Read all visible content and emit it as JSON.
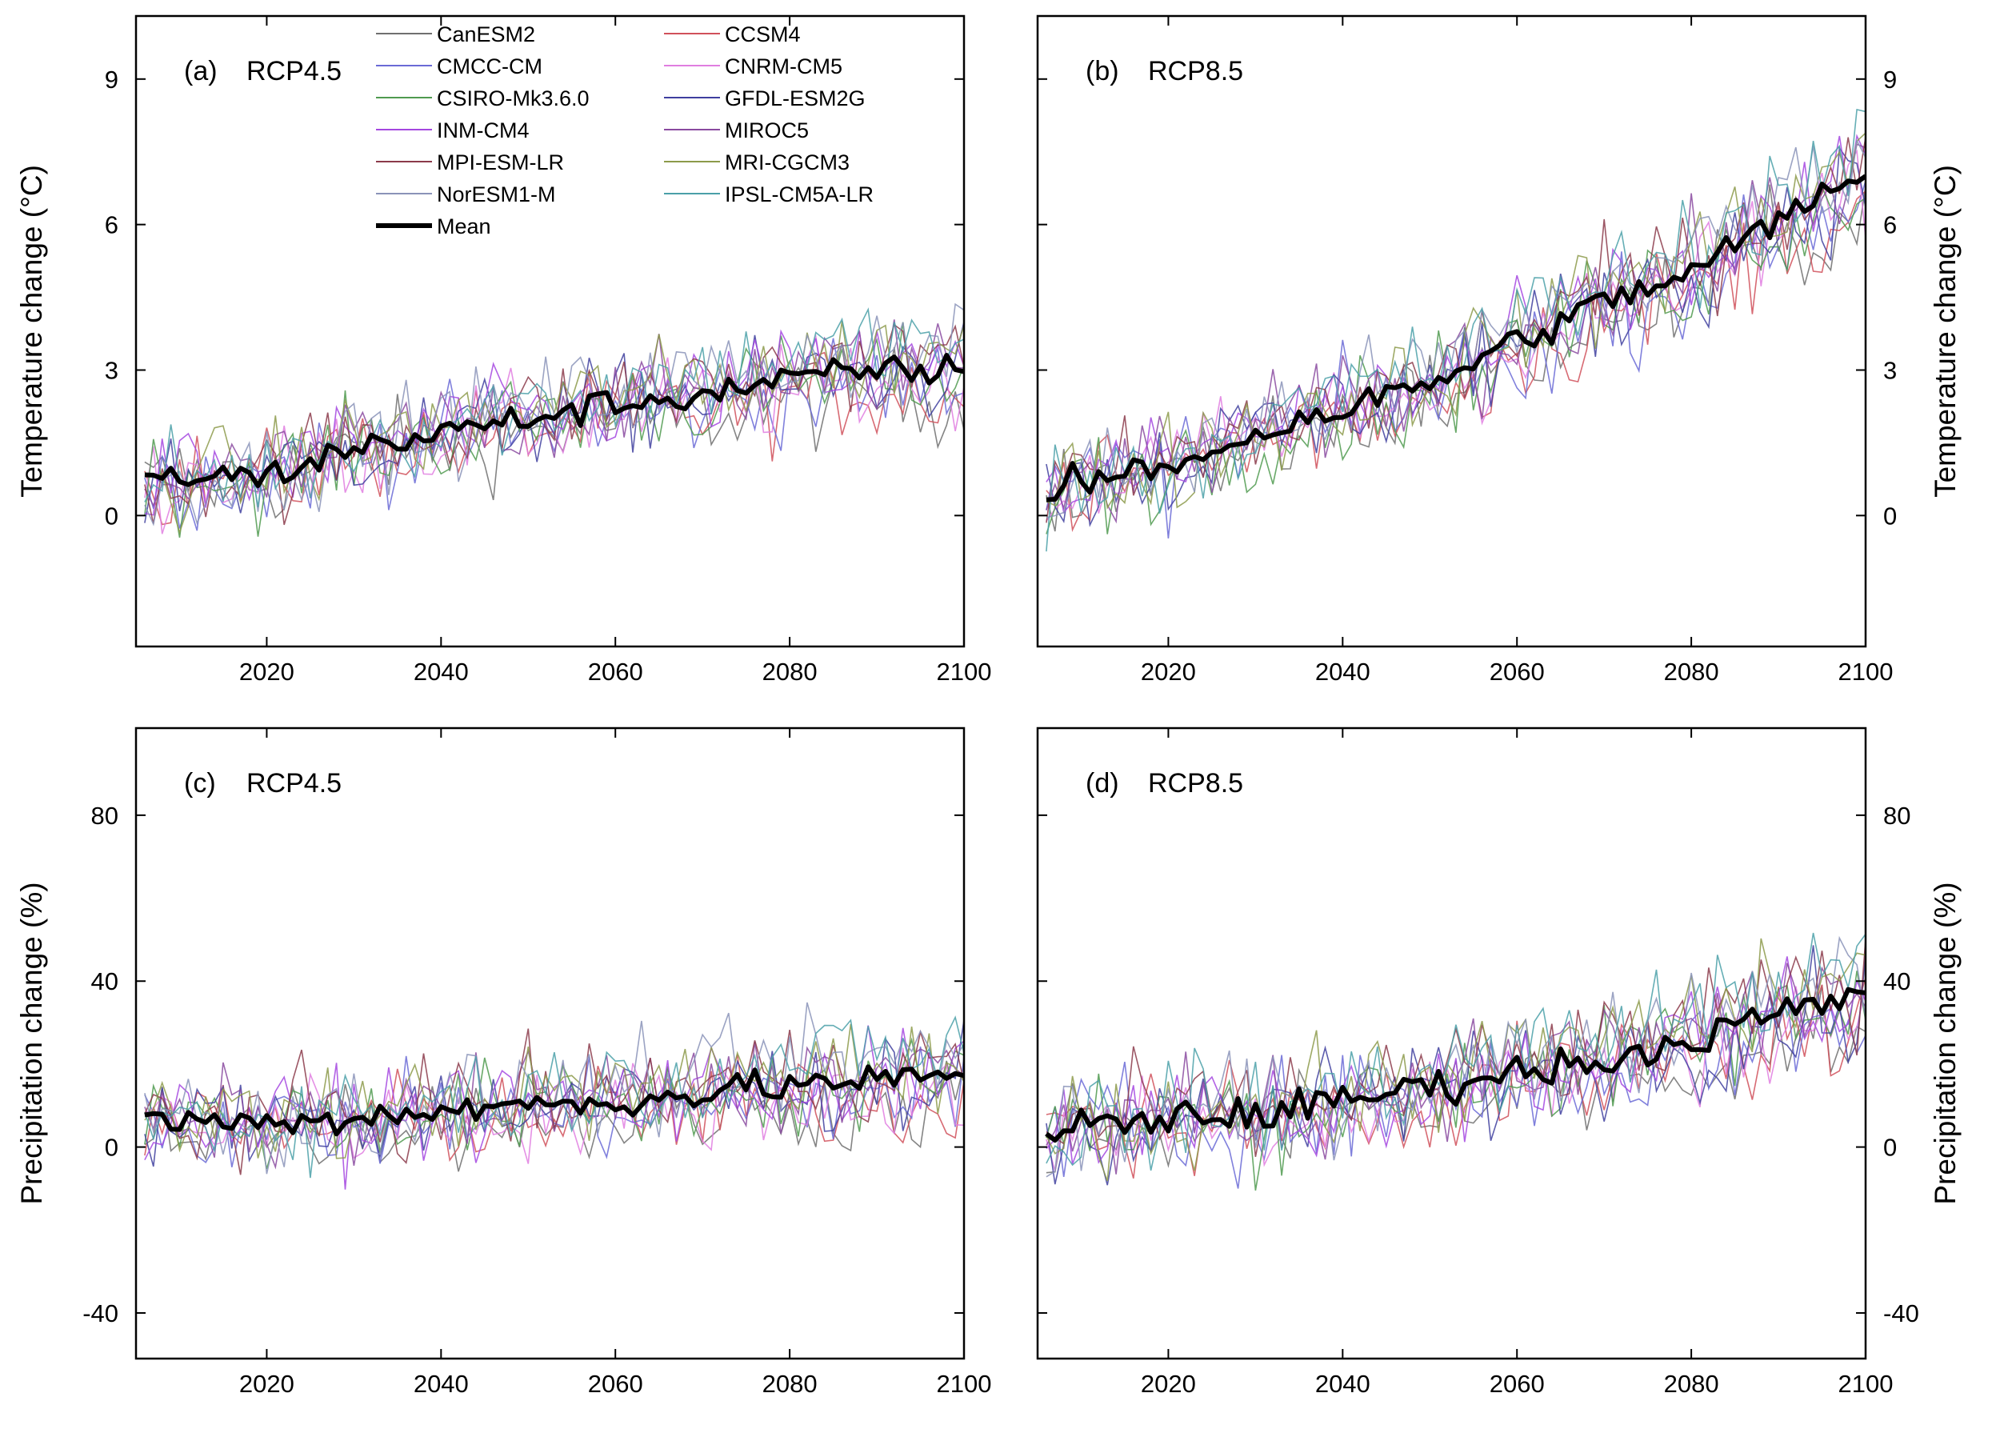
{
  "figure": {
    "background": "#ffffff",
    "models": [
      {
        "name": "CanESM2",
        "color": "#6f6f6f"
      },
      {
        "name": "CCSM4",
        "color": "#d0505a"
      },
      {
        "name": "CMCC-CM",
        "color": "#6a6ad6"
      },
      {
        "name": "CNRM-CM5",
        "color": "#e07ee0"
      },
      {
        "name": "CSIRO-Mk3.6.0",
        "color": "#4f9a4f"
      },
      {
        "name": "GFDL-ESM2G",
        "color": "#3f3f9f"
      },
      {
        "name": "INM-CM4",
        "color": "#a447e0"
      },
      {
        "name": "MIROC5",
        "color": "#8a4aa0"
      },
      {
        "name": "MPI-ESM-LR",
        "color": "#8b3a4a"
      },
      {
        "name": "MRI-CGCM3",
        "color": "#8c9a4a"
      },
      {
        "name": "NorESM1-M",
        "color": "#8a93b8"
      },
      {
        "name": "IPSL-CM5A-LR",
        "color": "#4aa0a8"
      }
    ],
    "mean_label": "Mean",
    "mean_color": "#000000"
  },
  "chart_data": [
    {
      "id": "a",
      "type": "line",
      "label": "(a)",
      "scenario": "RCP4.5",
      "variable": "temperature",
      "ylabel": "Temperature change (°C)",
      "ylabel_side": "left",
      "xlim": [
        2005,
        2100
      ],
      "ylim": [
        -2.7,
        10.3
      ],
      "xticks": [
        2020,
        2040,
        2060,
        2080,
        2100
      ],
      "yticks": [
        0,
        3,
        6,
        9
      ],
      "ytick_labels": [
        "0",
        "3",
        "6",
        "9"
      ],
      "legend": "top-center",
      "mean": {
        "x": [
          2006,
          2010,
          2020,
          2030,
          2040,
          2050,
          2060,
          2070,
          2080,
          2090,
          2100
        ],
        "y": [
          0.6,
          0.8,
          0.8,
          1.4,
          1.7,
          2.0,
          2.3,
          2.5,
          2.8,
          3.0,
          3.0
        ]
      },
      "model_spread": 1.3
    },
    {
      "id": "b",
      "type": "line",
      "label": "(b)",
      "scenario": "RCP8.5",
      "variable": "temperature",
      "ylabel": "Temperature change (°C)",
      "ylabel_side": "right",
      "xlim": [
        2005,
        2100
      ],
      "ylim": [
        -2.7,
        10.3
      ],
      "xticks": [
        2020,
        2040,
        2060,
        2080,
        2100
      ],
      "yticks": [
        0,
        3,
        6,
        9
      ],
      "ytick_labels": [
        "0",
        "3",
        "6",
        "9"
      ],
      "mean": {
        "x": [
          2006,
          2010,
          2020,
          2030,
          2040,
          2050,
          2060,
          2070,
          2080,
          2090,
          2100
        ],
        "y": [
          0.3,
          0.7,
          1.0,
          1.7,
          2.2,
          2.7,
          3.6,
          4.4,
          5.0,
          6.1,
          7.0
        ]
      },
      "model_spread": 1.4
    },
    {
      "id": "c",
      "type": "line",
      "label": "(c)",
      "scenario": "RCP4.5",
      "variable": "precipitation",
      "ylabel": "Precipitation change (%)",
      "ylabel_side": "left",
      "xlim": [
        2005,
        2100
      ],
      "ylim": [
        -51,
        101
      ],
      "xticks": [
        2020,
        2040,
        2060,
        2080,
        2100
      ],
      "yticks": [
        -40,
        0,
        40,
        80
      ],
      "ytick_labels": [
        "-40",
        "0",
        "40",
        "80"
      ],
      "mean": {
        "x": [
          2006,
          2010,
          2020,
          2030,
          2040,
          2050,
          2060,
          2070,
          2080,
          2090,
          2100
        ],
        "y": [
          8,
          6,
          6,
          7,
          9,
          10,
          11,
          13,
          15,
          16,
          17
        ]
      },
      "model_spread": 15
    },
    {
      "id": "d",
      "type": "line",
      "label": "(d)",
      "scenario": "RCP8.5",
      "variable": "precipitation",
      "ylabel": "Precipitation change (%)",
      "ylabel_side": "right",
      "xlim": [
        2005,
        2100
      ],
      "ylim": [
        -51,
        101
      ],
      "xticks": [
        2020,
        2040,
        2060,
        2080,
        2100
      ],
      "yticks": [
        -40,
        0,
        40,
        80
      ],
      "ytick_labels": [
        "-40",
        "0",
        "40",
        "80"
      ],
      "mean": {
        "x": [
          2006,
          2010,
          2020,
          2030,
          2040,
          2050,
          2060,
          2070,
          2080,
          2090,
          2100
        ],
        "y": [
          2,
          5,
          7,
          8,
          11,
          15,
          18,
          21,
          26,
          32,
          36
        ]
      },
      "model_spread": 17
    }
  ]
}
